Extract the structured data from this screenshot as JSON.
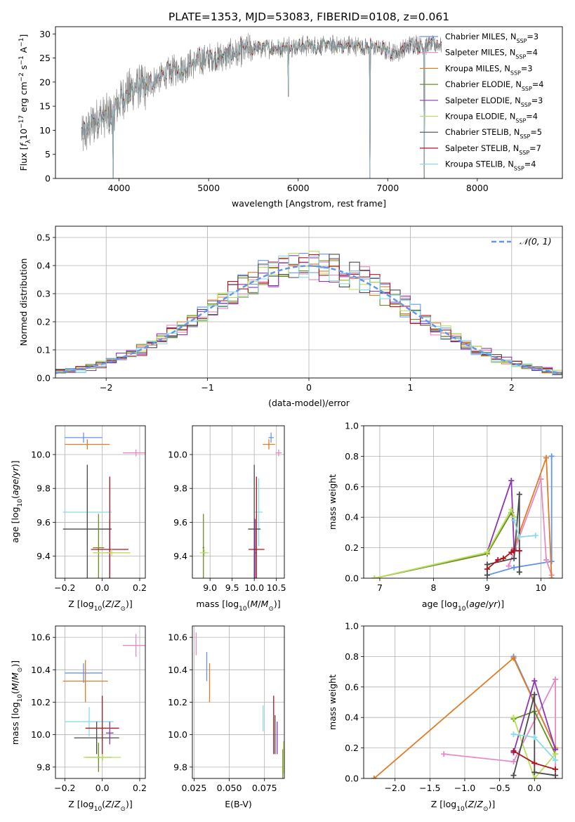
{
  "figure": {
    "title": "PLATE=1353, MJD=53083, FIBERID=0108, z=0.061"
  },
  "colors": {
    "Chabrier MILES": "#6495ed",
    "Salpeter MILES": "#e78ac3",
    "Kroupa MILES": "#e07b26",
    "Chabrier ELODIE": "#6b8e23",
    "Salpeter ELODIE": "#8e35b5",
    "Kroupa ELODIE": "#b8e05a",
    "Chabrier STELIB": "#4a4a4a",
    "Salpeter STELIB": "#b0141e",
    "Kroupa STELIB": "#88dce8"
  },
  "chart_data": [
    {
      "id": "spectrum",
      "type": "line",
      "xlabel": "wavelength [Angstrom, rest frame]",
      "ylabel": "Flux [f_λ10^-17 erg cm^-2 s^-1 A^-1]",
      "xlim": [
        3290,
        8950
      ],
      "ylim": [
        0,
        31.5
      ],
      "xticks": [
        4000,
        5000,
        6000,
        7000,
        8000
      ],
      "yticks": [
        0,
        5,
        10,
        15,
        20,
        25,
        30
      ],
      "grid": false,
      "legend_position": "right",
      "legend": [
        {
          "label": "Chabrier MILES",
          "nssp": "3"
        },
        {
          "label": "Salpeter MILES",
          "nssp": "4"
        },
        {
          "label": "Kroupa MILES",
          "nssp": "3"
        },
        {
          "label": "Chabrier ELODIE",
          "nssp": "4"
        },
        {
          "label": "Salpeter ELODIE",
          "nssp": "3"
        },
        {
          "label": "Kroupa ELODIE",
          "nssp": "4"
        },
        {
          "label": "Chabrier STELIB",
          "nssp": "5"
        },
        {
          "label": "Salpeter STELIB",
          "nssp": "7"
        },
        {
          "label": "Kroupa STELIB",
          "nssp": "4"
        }
      ],
      "continuum": {
        "x": [
          3600,
          3700,
          3800,
          3900,
          4000,
          4100,
          4200,
          4300,
          4500,
          4700,
          4900,
          5100,
          5300,
          5500,
          5700,
          5900,
          6100,
          6300,
          6500,
          6700,
          6900,
          7100,
          7300,
          7400,
          7600
        ],
        "y": [
          9,
          11,
          13,
          13,
          16,
          18,
          19,
          19,
          21.5,
          23,
          24.5,
          25,
          26,
          27,
          27,
          27.5,
          27.5,
          27.5,
          27.5,
          27.5,
          27,
          26,
          28,
          27.5,
          28
        ]
      },
      "features": [
        {
          "x": 3934,
          "y": 0
        },
        {
          "x": 5890,
          "y": 17
        },
        {
          "x": 6800,
          "y": 0
        },
        {
          "x": 7410,
          "y": 0
        }
      ]
    },
    {
      "id": "residual-histogram",
      "type": "line",
      "xlabel": "(data-model)/error",
      "ylabel": "Normed distribution",
      "xlim": [
        -2.5,
        2.5
      ],
      "ylim": [
        0,
        0.54
      ],
      "xticks": [
        -2,
        -1,
        0,
        1,
        2
      ],
      "yticks": [
        0.0,
        0.1,
        0.2,
        0.3,
        0.4,
        0.5
      ],
      "grid": true,
      "legend_position": "top-right",
      "curve_label": "𝒩(0, 1)",
      "curve_color": "#6495ed"
    },
    {
      "id": "age-vs-Z",
      "type": "scatter",
      "xlabel": "Z [log10(Z/Z⊙)]",
      "ylabel": "age [log10(age/yr)]",
      "xlim": [
        -0.25,
        0.23
      ],
      "ylim": [
        9.27,
        10.17
      ],
      "xticks": [
        -0.2,
        0.0,
        0.2
      ],
      "yticks": [
        9.4,
        9.6,
        9.8,
        10.0
      ],
      "grid": true,
      "points": [
        {
          "model": "Chabrier MILES",
          "x": -0.1,
          "y": 10.1,
          "ex": 0.1,
          "ey": 0.03
        },
        {
          "model": "Kroupa MILES",
          "x": -0.08,
          "y": 10.06,
          "ex": 0.12,
          "ey": 0.03
        },
        {
          "model": "Salpeter MILES",
          "x": 0.18,
          "y": 10.01,
          "ex": 0.07,
          "ey": 0.02
        },
        {
          "model": "Kroupa STELIB",
          "x": -0.08,
          "y": 9.66,
          "ex": 0.13,
          "ey": 0.19
        },
        {
          "model": "Chabrier STELIB",
          "x": -0.08,
          "y": 9.56,
          "ex": 0.13,
          "ey": 0.38
        },
        {
          "model": "Chabrier ELODIE",
          "x": -0.02,
          "y": 9.45,
          "ex": 0.03,
          "ey": 0.2
        },
        {
          "model": "Salpeter ELODIE",
          "x": 0.04,
          "y": 9.42,
          "ex": 0.02,
          "ey": 0.2
        },
        {
          "model": "Salpeter STELIB",
          "x": 0.04,
          "y": 9.44,
          "ex": 0.1,
          "ey": 0.43
        },
        {
          "model": "Kroupa ELODIE",
          "x": 0.05,
          "y": 9.42,
          "ex": 0.1,
          "ey": 0.02
        }
      ]
    },
    {
      "id": "age-vs-mass",
      "type": "scatter",
      "xlabel": "mass [log10(M/M⊙)]",
      "ylabel": "",
      "xlim": [
        8.6,
        10.68
      ],
      "ylim": [
        9.27,
        10.17
      ],
      "xticks": [
        9.0,
        9.5,
        10.0,
        10.5
      ],
      "yticks": [
        9.4,
        9.6,
        9.8,
        10.0
      ],
      "grid": true,
      "points": [
        {
          "model": "Chabrier MILES",
          "x": 10.38,
          "y": 10.1,
          "ex": 0.06,
          "ey": 0.03
        },
        {
          "model": "Kroupa MILES",
          "x": 10.33,
          "y": 10.06,
          "ex": 0.14,
          "ey": 0.03
        },
        {
          "model": "Salpeter MILES",
          "x": 10.55,
          "y": 10.01,
          "ex": 0.07,
          "ey": 0.02
        },
        {
          "model": "Kroupa STELIB",
          "x": 10.1,
          "y": 9.66,
          "ex": 0.09,
          "ey": 0.2
        },
        {
          "model": "Chabrier STELIB",
          "x": 10.0,
          "y": 9.56,
          "ex": 0.14,
          "ey": 0.38
        },
        {
          "model": "Chabrier ELODIE",
          "x": 8.85,
          "y": 9.45,
          "ex": 0.02,
          "ey": 0.2
        },
        {
          "model": "Salpeter ELODIE",
          "x": 10.02,
          "y": 9.42,
          "ex": 0.02,
          "ey": 0.2
        },
        {
          "model": "Salpeter STELIB",
          "x": 10.05,
          "y": 9.44,
          "ex": 0.18,
          "ey": 0.43
        },
        {
          "model": "Kroupa ELODIE",
          "x": 8.87,
          "y": 9.42,
          "ex": 0.1,
          "ey": 0.02
        }
      ]
    },
    {
      "id": "mass-weight-vs-age",
      "type": "line",
      "xlabel": "age [log10(age/yr)]",
      "ylabel": "mass weight",
      "xlim": [
        6.7,
        10.4
      ],
      "ylim": [
        0,
        1.0
      ],
      "xticks": [
        7,
        8,
        9,
        10
      ],
      "yticks": [
        0.0,
        0.2,
        0.4,
        0.6,
        0.8,
        1.0
      ],
      "grid": true,
      "series": [
        {
          "model": "Chabrier MILES",
          "x": [
            9.0,
            9.5,
            10.2,
            10.2
          ],
          "y": [
            0.02,
            0.07,
            0.11,
            0.8
          ]
        },
        {
          "model": "Salpeter MILES",
          "x": [
            9.4,
            10.0,
            10.1,
            10.2
          ],
          "y": [
            0.08,
            0.65,
            0.12,
            0.02
          ]
        },
        {
          "model": "Kroupa MILES",
          "x": [
            9.5,
            10.1,
            10.2
          ],
          "y": [
            0.2,
            0.79,
            0.0
          ]
        },
        {
          "model": "Chabrier ELODIE",
          "x": [
            6.9,
            9.0,
            9.45,
            9.5
          ],
          "y": [
            0.0,
            0.16,
            0.43,
            0.4
          ]
        },
        {
          "model": "Salpeter ELODIE",
          "x": [
            9.0,
            9.45,
            9.5
          ],
          "y": [
            0.17,
            0.64,
            0.19
          ]
        },
        {
          "model": "Kroupa ELODIE",
          "x": [
            6.9,
            9.0,
            9.45,
            9.5
          ],
          "y": [
            0.0,
            0.17,
            0.45,
            0.4
          ]
        },
        {
          "model": "Chabrier STELIB",
          "x": [
            9.0,
            9.0,
            9.5,
            9.6,
            9.6
          ],
          "y": [
            0.02,
            0.09,
            0.13,
            0.55,
            0.04
          ]
        },
        {
          "model": "Salpeter STELIB",
          "x": [
            9.0,
            9.2,
            9.3,
            9.45,
            9.5,
            9.6
          ],
          "y": [
            0.06,
            0.12,
            0.13,
            0.17,
            0.18,
            0.18
          ]
        },
        {
          "model": "Kroupa STELIB",
          "x": [
            9.5,
            9.6,
            9.9
          ],
          "y": [
            0.38,
            0.27,
            0.28
          ]
        }
      ]
    },
    {
      "id": "mass-vs-Z",
      "type": "scatter",
      "xlabel": "Z [log10(Z/Z⊙)]",
      "ylabel": "mass [log10(M/M⊙)]",
      "xlim": [
        -0.25,
        0.23
      ],
      "ylim": [
        9.73,
        10.67
      ],
      "xticks": [
        -0.2,
        0.0,
        0.2
      ],
      "yticks": [
        9.8,
        10.0,
        10.2,
        10.4,
        10.6
      ],
      "grid": true,
      "points": [
        {
          "model": "Chabrier MILES",
          "x": -0.1,
          "y": 10.38,
          "ex": 0.1,
          "ey": 0.06
        },
        {
          "model": "Kroupa MILES",
          "x": -0.09,
          "y": 10.33,
          "ex": 0.12,
          "ey": 0.13
        },
        {
          "model": "Salpeter MILES",
          "x": 0.18,
          "y": 10.55,
          "ex": 0.07,
          "ey": 0.07
        },
        {
          "model": "Kroupa STELIB",
          "x": -0.07,
          "y": 10.08,
          "ex": 0.13,
          "ey": 0.09
        },
        {
          "model": "Salpeter STELIB",
          "x": 0.0,
          "y": 10.04,
          "ex": 0.09,
          "ey": 0.2
        },
        {
          "model": "Salpeter ELODIE",
          "x": 0.04,
          "y": 10.01,
          "ex": 0.02,
          "ey": 0.07
        },
        {
          "model": "Chabrier STELIB",
          "x": -0.03,
          "y": 9.98,
          "ex": 0.12,
          "ey": 0.1
        },
        {
          "model": "Chabrier ELODIE",
          "x": -0.02,
          "y": 9.86,
          "ex": 0.07,
          "ey": 0.09
        },
        {
          "model": "Kroupa ELODIE",
          "x": 0.0,
          "y": 9.86,
          "ex": 0.1,
          "ey": 0.02
        }
      ]
    },
    {
      "id": "mass-vs-ebv",
      "type": "scatter",
      "xlabel": "E(B-V)",
      "ylabel": "",
      "xlim": [
        0.0238,
        0.0891
      ],
      "ylim": [
        9.73,
        10.67
      ],
      "xticks": [
        0.025,
        0.05,
        0.075
      ],
      "yticks": [
        9.8,
        10.0,
        10.2,
        10.4,
        10.6
      ],
      "grid": true,
      "points": [
        {
          "model": "Salpeter MILES",
          "x": 0.0265,
          "y": 10.56,
          "ey": 0.07
        },
        {
          "model": "Chabrier MILES",
          "x": 0.034,
          "y": 10.42,
          "ey": 0.09
        },
        {
          "model": "Kroupa MILES",
          "x": 0.036,
          "y": 10.32,
          "ey": 0.12
        },
        {
          "model": "Kroupa STELIB",
          "x": 0.074,
          "y": 10.1,
          "ey": 0.08
        },
        {
          "model": "Salpeter STELIB",
          "x": 0.0815,
          "y": 10.06,
          "ey": 0.18
        },
        {
          "model": "Salpeter ELODIE",
          "x": 0.084,
          "y": 9.98,
          "ey": 0.1
        },
        {
          "model": "Chabrier STELIB",
          "x": 0.0825,
          "y": 10.0,
          "ey": 0.12
        },
        {
          "model": "Chabrier ELODIE",
          "x": 0.088,
          "y": 9.82,
          "ey": 0.09
        },
        {
          "model": "Kroupa ELODIE",
          "x": 0.0885,
          "y": 9.86,
          "ey": 0.1
        }
      ]
    },
    {
      "id": "mass-weight-vs-Z",
      "type": "line",
      "xlabel": "Z [log10(Z/Z⊙)]",
      "ylabel": "mass weight",
      "xlim": [
        -2.45,
        0.4
      ],
      "ylim": [
        0,
        1.0
      ],
      "xticks": [
        -2.0,
        -1.5,
        -1.0,
        -0.5,
        0.0
      ],
      "yticks": [
        0.0,
        0.2,
        0.4,
        0.6,
        0.8,
        1.0
      ],
      "grid": true,
      "series": [
        {
          "model": "Chabrier MILES",
          "x": [
            -0.3,
            0.3
          ],
          "y": [
            0.8,
            0.2
          ]
        },
        {
          "model": "Salpeter MILES",
          "x": [
            -1.3,
            -0.3,
            0.3,
            0.3
          ],
          "y": [
            0.16,
            0.11,
            0.65,
            0.0
          ]
        },
        {
          "model": "Kroupa MILES",
          "x": [
            -2.3,
            -0.3,
            0.3
          ],
          "y": [
            0.0,
            0.79,
            0.2
          ]
        },
        {
          "model": "Chabrier ELODIE",
          "x": [
            -0.3,
            0.0,
            0.3
          ],
          "y": [
            0.39,
            0.44,
            0.16
          ]
        },
        {
          "model": "Salpeter ELODIE",
          "x": [
            -0.3,
            0.0,
            0.3
          ],
          "y": [
            0.17,
            0.64,
            0.19
          ]
        },
        {
          "model": "Kroupa ELODIE",
          "x": [
            -0.3,
            0.0,
            0.3
          ],
          "y": [
            0.4,
            0.0,
            0.16
          ]
        },
        {
          "model": "Chabrier STELIB",
          "x": [
            -0.3,
            0.0,
            0.0,
            0.3
          ],
          "y": [
            0.02,
            0.55,
            0.04,
            0.02
          ]
        },
        {
          "model": "Salpeter STELIB",
          "x": [
            -0.3,
            0.0,
            0.3
          ],
          "y": [
            0.18,
            0.1,
            0.06
          ]
        },
        {
          "model": "Kroupa STELIB",
          "x": [
            -0.3,
            0.0,
            0.3
          ],
          "y": [
            0.29,
            0.27,
            0.12
          ]
        }
      ]
    }
  ]
}
